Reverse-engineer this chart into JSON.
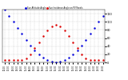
{
  "bg_color": "#ffffff",
  "grid_color": "#aaaaaa",
  "x_values": [
    0,
    1,
    2,
    3,
    4,
    5,
    6,
    7,
    8,
    9,
    10,
    11,
    12,
    13,
    14,
    15,
    16,
    17,
    18,
    19,
    20,
    21,
    22,
    23
  ],
  "altitude_y": [
    130,
    115,
    100,
    85,
    70,
    55,
    42,
    30,
    20,
    12,
    6,
    2,
    0,
    2,
    6,
    12,
    20,
    30,
    42,
    55,
    70,
    85,
    100,
    115
  ],
  "incidence_y": [
    5,
    5,
    5,
    5,
    5,
    10,
    20,
    35,
    50,
    65,
    78,
    88,
    92,
    88,
    78,
    65,
    50,
    35,
    20,
    10,
    5,
    5,
    5,
    5
  ],
  "altitude_color": "#0000dd",
  "incidence_color": "#dd0000",
  "ylim": [
    0,
    130
  ],
  "ytick_vals": [
    0,
    20,
    40,
    60,
    80,
    100,
    120
  ],
  "ytick_labels": [
    "0",
    "20",
    "40",
    "60",
    "80",
    "100",
    "120"
  ],
  "legend_labels": [
    "Sun Altitude Angle",
    "Sun Incidence Angle on PV Panels"
  ],
  "legend_colors": [
    "#0000dd",
    "#dd0000"
  ],
  "x_tick_step": 1
}
